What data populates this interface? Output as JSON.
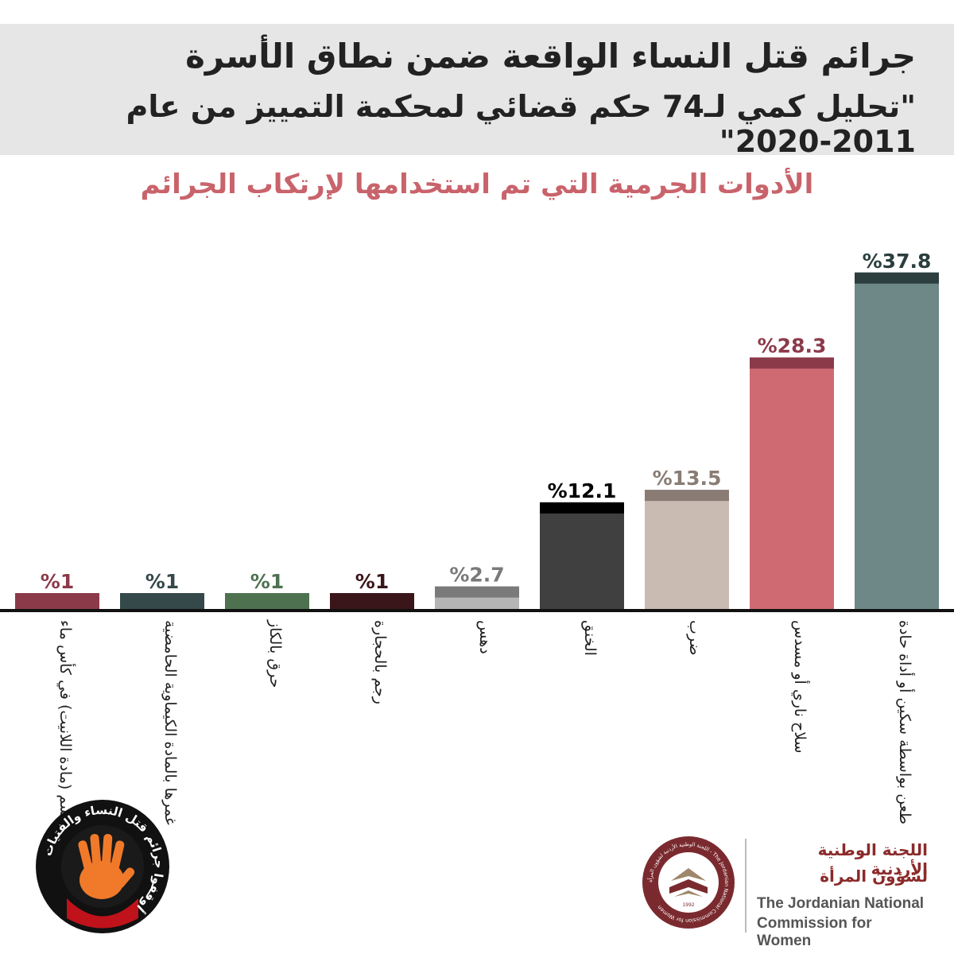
{
  "header": {
    "line1": "جرائم قتل النساء الواقعة ضمن نطاق الأسرة",
    "line2": "\"تحليل كمي لـ74 حكم قضائي لمحكمة التمييز من عام 2011-2020\""
  },
  "colors": {
    "title": "#c9636b",
    "header_bg": "#e6e6e6",
    "axis": "#111111"
  },
  "chart_data": {
    "type": "bar",
    "title": "الأدوات الجرمية التي تم استخدامها لإرتكاب الجرائم",
    "unit": "%",
    "ylim": [
      0,
      40
    ],
    "grid": false,
    "legend": "none",
    "categories": [
      "دس السم (مادة اللانيت) في كأس ماء",
      "غمرها بالمادة الكيماوية الحامضية",
      "حرق بالكاز",
      "رجم بالحجارة",
      "دهس",
      "الخنق",
      "ضرب",
      "سلاح ناري أو مسدس",
      "طعن بواسطة سكين أو أداة حادة"
    ],
    "values": [
      1,
      1,
      1,
      1,
      2.7,
      12.1,
      13.5,
      28.3,
      37.8
    ],
    "value_labels": [
      "%1",
      "%1",
      "%1",
      "%1",
      "%2.7",
      "%12.1",
      "%13.5",
      "%28.3",
      "%37.8"
    ],
    "bar_colors": [
      "#8b3a4a",
      "#35484a",
      "#4e7150",
      "#3a1519",
      "#b5b5b5",
      "#404040",
      "#c9bab2",
      "#cf6a72",
      "#6e8888"
    ],
    "cap_colors": [
      "#8b3a4a",
      "#35484a",
      "#4e7150",
      "#3a1519",
      "#7a7a7a",
      "#000000",
      "#8a7c75",
      "#8b3a4a",
      "#2c3e3e"
    ],
    "label_colors": [
      "#8b3a4a",
      "#35484a",
      "#4e7150",
      "#3a1519",
      "#7a7a7a",
      "#000000",
      "#8a7c75",
      "#8b3a4a",
      "#2c3e3e"
    ]
  },
  "badge": {
    "text": "أوقفوا جرائم قتل النساء والفتيات"
  },
  "commission": {
    "ar_line1": "اللجنة الوطنية الأردنية",
    "ar_line2": "لشؤون المرأة",
    "en_line1": "The Jordanian National",
    "en_line2": "Commission for Women",
    "emblem_text": "اللجنة الوطنية الأردنية لشؤون المرأة - The Jordanian National Commission for Women",
    "emblem_year": "1992"
  }
}
